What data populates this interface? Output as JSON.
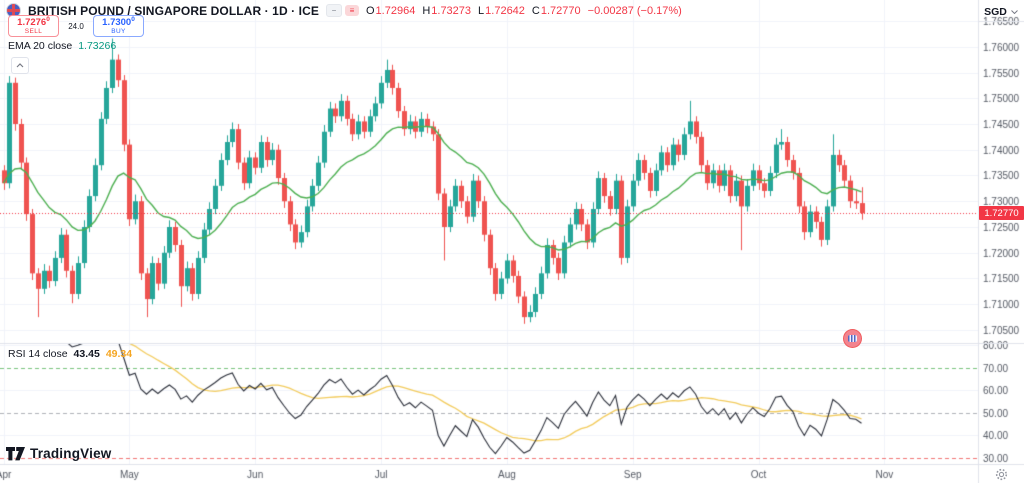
{
  "header": {
    "title": "BRITISH POUND / SINGAPORE DOLLAR · 1D · ICE",
    "ohlc": {
      "o_label": "O",
      "o": "1.72964",
      "h_label": "H",
      "h": "1.73273",
      "l_label": "L",
      "l": "1.72642",
      "c_label": "C",
      "c": "1.72770",
      "change": "−0.00287 (−0.17%)"
    }
  },
  "trade_panel": {
    "sell_price": "1.7276",
    "sell_sup": "0",
    "sell_label": "SELL",
    "spread": "24.0",
    "buy_price": "1.7300",
    "buy_sup": "0",
    "buy_label": "BUY"
  },
  "indicators": {
    "ema": {
      "label": "EMA 20 close",
      "value": "1.73266"
    },
    "rsi": {
      "label": "RSI 14 close",
      "value": "43.45",
      "ma_value": "49.34"
    }
  },
  "axis": {
    "currency": "SGD",
    "price_label": "1.72770",
    "price_ticks": [
      "1.76500",
      "1.76000",
      "1.75500",
      "1.75000",
      "1.74500",
      "1.74000",
      "1.73500",
      "1.73000",
      "1.72500",
      "1.72000",
      "1.71500",
      "1.71000",
      "1.70500"
    ],
    "rsi_ticks": [
      "80.00",
      "70.00",
      "60.00",
      "50.00",
      "40.00",
      "30.00"
    ],
    "months": [
      {
        "label": "Apr",
        "bar": 0
      },
      {
        "label": "May",
        "bar": 22
      },
      {
        "label": "Jun",
        "bar": 44
      },
      {
        "label": "Jul",
        "bar": 66
      },
      {
        "label": "Aug",
        "bar": 88
      },
      {
        "label": "Sep",
        "bar": 110
      },
      {
        "label": "Oct",
        "bar": 132
      },
      {
        "label": "Nov",
        "bar": 154
      }
    ]
  },
  "watermark": "TradingView",
  "colors": {
    "up": "#26a69a",
    "down": "#ef5350",
    "accent_sell": "#f23645",
    "accent_buy": "#2962ff",
    "ema": "#4caf50",
    "rsi_line": "#2a2e39",
    "rsi_ma": "#f2cb5c",
    "price_line": "#f23645",
    "grid": "#f0f3fa",
    "axis_border": "#e0e3eb",
    "axis_text": "#555a64",
    "level70": "rgba(76,175,80,0.75)",
    "level50": "rgba(140,143,152,0.7)",
    "level30": "rgba(239,83,80,0.8)"
  },
  "chart_data": {
    "type": "candlestick",
    "symbol": "GBPSGD",
    "exchange": "ICE",
    "interval": "1D",
    "currency": "SGD",
    "last_price": 1.7277,
    "price_axis_range": [
      1.7025,
      1.769
    ],
    "ema_period": 20,
    "rsi_period": 14,
    "rsi_ma_period": 14,
    "rsi_axis_range": [
      27,
      82
    ],
    "rsi_levels": [
      {
        "value": 70,
        "color_key": "level70"
      },
      {
        "value": 50,
        "color_key": "level50"
      },
      {
        "value": 30,
        "color_key": "level30"
      }
    ],
    "candles": [
      [
        1.736,
        1.737,
        1.7322,
        1.7335
      ],
      [
        1.7335,
        1.7543,
        1.7325,
        1.753
      ],
      [
        1.753,
        1.754,
        1.7437,
        1.745
      ],
      [
        1.745,
        1.746,
        1.7362,
        1.7375
      ],
      [
        1.7375,
        1.7385,
        1.7262,
        1.7275
      ],
      [
        1.7275,
        1.7285,
        1.7147,
        1.716
      ],
      [
        1.716,
        1.717,
        1.7075,
        1.713
      ],
      [
        1.713,
        1.7178,
        1.712,
        1.7165
      ],
      [
        1.7165,
        1.7175,
        1.7132,
        1.7145
      ],
      [
        1.7145,
        1.7203,
        1.7135,
        1.719
      ],
      [
        1.719,
        1.7248,
        1.718,
        1.7235
      ],
      [
        1.7235,
        1.7245,
        1.7152,
        1.7165
      ],
      [
        1.7165,
        1.7175,
        1.7102,
        1.712
      ],
      [
        1.712,
        1.7193,
        1.711,
        1.718
      ],
      [
        1.718,
        1.7263,
        1.717,
        1.725
      ],
      [
        1.725,
        1.7323,
        1.724,
        1.731
      ],
      [
        1.731,
        1.7383,
        1.73,
        1.737
      ],
      [
        1.737,
        1.7473,
        1.736,
        1.746
      ],
      [
        1.746,
        1.7533,
        1.745,
        1.752
      ],
      [
        1.752,
        1.7616,
        1.751,
        1.7575
      ],
      [
        1.7575,
        1.7585,
        1.7522,
        1.7535
      ],
      [
        1.7535,
        1.7545,
        1.7397,
        1.741
      ],
      [
        1.741,
        1.742,
        1.7252,
        1.7265
      ],
      [
        1.7265,
        1.7313,
        1.7255,
        1.73
      ],
      [
        1.73,
        1.731,
        1.7147,
        1.716
      ],
      [
        1.716,
        1.717,
        1.7075,
        1.711
      ],
      [
        1.711,
        1.7193,
        1.71,
        1.718
      ],
      [
        1.718,
        1.719,
        1.7127,
        1.714
      ],
      [
        1.714,
        1.7213,
        1.713,
        1.72
      ],
      [
        1.72,
        1.7263,
        1.719,
        1.725
      ],
      [
        1.725,
        1.726,
        1.7202,
        1.7215
      ],
      [
        1.7215,
        1.7225,
        1.7095,
        1.7135
      ],
      [
        1.7135,
        1.7183,
        1.7125,
        1.717
      ],
      [
        1.717,
        1.718,
        1.7107,
        1.712
      ],
      [
        1.712,
        1.7203,
        1.711,
        1.719
      ],
      [
        1.719,
        1.7258,
        1.718,
        1.7245
      ],
      [
        1.7245,
        1.7298,
        1.7235,
        1.7285
      ],
      [
        1.7285,
        1.7343,
        1.7275,
        1.733
      ],
      [
        1.733,
        1.7393,
        1.732,
        1.738
      ],
      [
        1.738,
        1.7428,
        1.737,
        1.7415
      ],
      [
        1.7415,
        1.7453,
        1.7405,
        1.744
      ],
      [
        1.744,
        1.745,
        1.7362,
        1.7375
      ],
      [
        1.7375,
        1.7385,
        1.7322,
        1.7335
      ],
      [
        1.7335,
        1.7398,
        1.7325,
        1.7385
      ],
      [
        1.7385,
        1.7395,
        1.7352,
        1.7365
      ],
      [
        1.7365,
        1.7428,
        1.7355,
        1.7415
      ],
      [
        1.7415,
        1.7425,
        1.7367,
        1.738
      ],
      [
        1.738,
        1.7413,
        1.737,
        1.74
      ],
      [
        1.74,
        1.741,
        1.7332,
        1.7345
      ],
      [
        1.7345,
        1.7355,
        1.7287,
        1.73
      ],
      [
        1.73,
        1.731,
        1.7242,
        1.7255
      ],
      [
        1.7255,
        1.7265,
        1.7207,
        1.722
      ],
      [
        1.722,
        1.7253,
        1.721,
        1.724
      ],
      [
        1.724,
        1.7303,
        1.723,
        1.729
      ],
      [
        1.729,
        1.7343,
        1.728,
        1.733
      ],
      [
        1.733,
        1.7388,
        1.732,
        1.7375
      ],
      [
        1.7375,
        1.7448,
        1.7365,
        1.7435
      ],
      [
        1.7435,
        1.7493,
        1.7425,
        1.748
      ],
      [
        1.748,
        1.749,
        1.7452,
        1.7465
      ],
      [
        1.7465,
        1.7508,
        1.7455,
        1.7495
      ],
      [
        1.7495,
        1.7505,
        1.7447,
        1.746
      ],
      [
        1.746,
        1.747,
        1.7417,
        1.743
      ],
      [
        1.743,
        1.7468,
        1.742,
        1.7455
      ],
      [
        1.7455,
        1.7465,
        1.7422,
        1.7435
      ],
      [
        1.7435,
        1.7478,
        1.7425,
        1.7465
      ],
      [
        1.7465,
        1.7503,
        1.7455,
        1.749
      ],
      [
        1.749,
        1.7543,
        1.748,
        1.753
      ],
      [
        1.753,
        1.7575,
        1.752,
        1.7555
      ],
      [
        1.7555,
        1.7565,
        1.7507,
        1.752
      ],
      [
        1.752,
        1.753,
        1.7462,
        1.7475
      ],
      [
        1.7475,
        1.7485,
        1.7427,
        1.744
      ],
      [
        1.744,
        1.7468,
        1.743,
        1.7455
      ],
      [
        1.7455,
        1.7465,
        1.7422,
        1.7435
      ],
      [
        1.7435,
        1.7473,
        1.7425,
        1.746
      ],
      [
        1.746,
        1.747,
        1.7432,
        1.7445
      ],
      [
        1.7445,
        1.7455,
        1.7417,
        1.743
      ],
      [
        1.743,
        1.744,
        1.7302,
        1.7315
      ],
      [
        1.7315,
        1.7325,
        1.7185,
        1.725
      ],
      [
        1.725,
        1.7303,
        1.724,
        1.729
      ],
      [
        1.729,
        1.7343,
        1.728,
        1.733
      ],
      [
        1.733,
        1.734,
        1.7287,
        1.73
      ],
      [
        1.73,
        1.731,
        1.7257,
        1.727
      ],
      [
        1.727,
        1.7353,
        1.726,
        1.734
      ],
      [
        1.734,
        1.735,
        1.7287,
        1.73
      ],
      [
        1.73,
        1.731,
        1.7222,
        1.7235
      ],
      [
        1.7235,
        1.7245,
        1.7157,
        1.717
      ],
      [
        1.717,
        1.718,
        1.7107,
        1.712
      ],
      [
        1.712,
        1.7163,
        1.711,
        1.715
      ],
      [
        1.715,
        1.7198,
        1.714,
        1.7185
      ],
      [
        1.7185,
        1.7195,
        1.7142,
        1.7155
      ],
      [
        1.7155,
        1.7165,
        1.7102,
        1.7115
      ],
      [
        1.7115,
        1.7125,
        1.7062,
        1.7075
      ],
      [
        1.7075,
        1.7098,
        1.7065,
        1.7085
      ],
      [
        1.7085,
        1.7133,
        1.7075,
        1.712
      ],
      [
        1.712,
        1.7173,
        1.711,
        1.716
      ],
      [
        1.716,
        1.7228,
        1.715,
        1.7215
      ],
      [
        1.7215,
        1.7225,
        1.7177,
        1.719
      ],
      [
        1.719,
        1.72,
        1.7147,
        1.716
      ],
      [
        1.716,
        1.7233,
        1.715,
        1.722
      ],
      [
        1.722,
        1.7268,
        1.721,
        1.7255
      ],
      [
        1.7255,
        1.7298,
        1.7245,
        1.7285
      ],
      [
        1.7285,
        1.7295,
        1.7242,
        1.7255
      ],
      [
        1.7255,
        1.7265,
        1.7207,
        1.722
      ],
      [
        1.722,
        1.7298,
        1.721,
        1.7285
      ],
      [
        1.7285,
        1.7358,
        1.7275,
        1.7345
      ],
      [
        1.7345,
        1.7355,
        1.7297,
        1.731
      ],
      [
        1.731,
        1.732,
        1.7272,
        1.7285
      ],
      [
        1.7285,
        1.7353,
        1.7275,
        1.734
      ],
      [
        1.734,
        1.735,
        1.7177,
        1.719
      ],
      [
        1.719,
        1.7303,
        1.718,
        1.729
      ],
      [
        1.729,
        1.7353,
        1.728,
        1.734
      ],
      [
        1.734,
        1.7393,
        1.733,
        1.738
      ],
      [
        1.738,
        1.739,
        1.7342,
        1.7355
      ],
      [
        1.7355,
        1.7365,
        1.7307,
        1.732
      ],
      [
        1.732,
        1.7373,
        1.731,
        1.736
      ],
      [
        1.736,
        1.7408,
        1.735,
        1.7395
      ],
      [
        1.7395,
        1.7405,
        1.7357,
        1.737
      ],
      [
        1.737,
        1.7423,
        1.736,
        1.741
      ],
      [
        1.741,
        1.742,
        1.7377,
        1.739
      ],
      [
        1.739,
        1.7443,
        1.738,
        1.743
      ],
      [
        1.743,
        1.7495,
        1.742,
        1.7455
      ],
      [
        1.7455,
        1.7465,
        1.7412,
        1.7425
      ],
      [
        1.7425,
        1.7435,
        1.7357,
        1.737
      ],
      [
        1.737,
        1.738,
        1.7322,
        1.7335
      ],
      [
        1.7335,
        1.7373,
        1.7325,
        1.736
      ],
      [
        1.736,
        1.737,
        1.7317,
        1.733
      ],
      [
        1.733,
        1.7373,
        1.732,
        1.736
      ],
      [
        1.736,
        1.737,
        1.7297,
        1.731
      ],
      [
        1.731,
        1.7353,
        1.73,
        1.734
      ],
      [
        1.734,
        1.735,
        1.7205,
        1.729
      ],
      [
        1.729,
        1.7343,
        1.728,
        1.733
      ],
      [
        1.733,
        1.7373,
        1.732,
        1.736
      ],
      [
        1.736,
        1.737,
        1.7322,
        1.7335
      ],
      [
        1.7335,
        1.7345,
        1.7307,
        1.732
      ],
      [
        1.732,
        1.7368,
        1.731,
        1.7355
      ],
      [
        1.7355,
        1.7423,
        1.7345,
        1.741
      ],
      [
        1.741,
        1.744,
        1.74,
        1.7415
      ],
      [
        1.7415,
        1.7425,
        1.7367,
        1.738
      ],
      [
        1.738,
        1.739,
        1.7342,
        1.7355
      ],
      [
        1.7355,
        1.7365,
        1.7277,
        1.729
      ],
      [
        1.729,
        1.73,
        1.7225,
        1.724
      ],
      [
        1.724,
        1.7293,
        1.723,
        1.728
      ],
      [
        1.728,
        1.729,
        1.7247,
        1.726
      ],
      [
        1.726,
        1.727,
        1.7212,
        1.7225
      ],
      [
        1.7225,
        1.7303,
        1.7215,
        1.729
      ],
      [
        1.729,
        1.743,
        1.728,
        1.739
      ],
      [
        1.739,
        1.74,
        1.7357,
        1.737
      ],
      [
        1.737,
        1.738,
        1.7327,
        1.734
      ],
      [
        1.734,
        1.735,
        1.7287,
        1.73
      ],
      [
        1.73,
        1.732,
        1.7285,
        1.7296
      ],
      [
        1.72964,
        1.73273,
        1.72642,
        1.7277
      ]
    ]
  }
}
